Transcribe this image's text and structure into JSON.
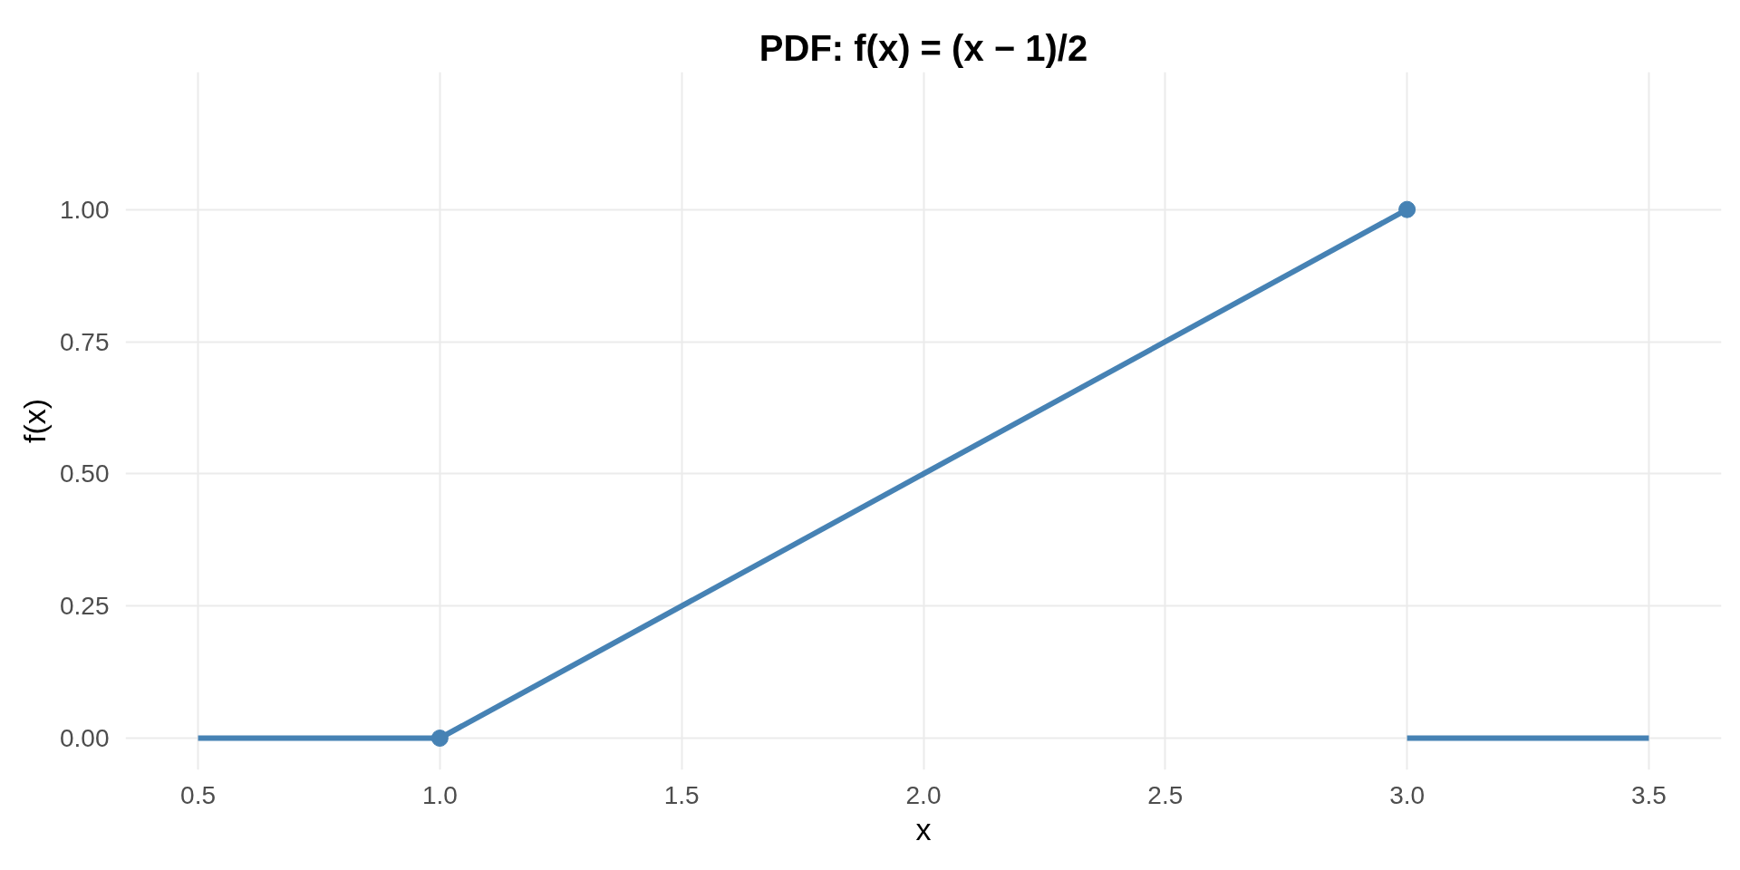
{
  "chart_data": {
    "type": "line",
    "title": "PDF: f(x) = (x − 1)/2",
    "xlabel": "x",
    "ylabel": "f(x)",
    "series": [
      {
        "color": "#4682b4",
        "x": [
          0.5,
          1
        ],
        "values": [
          0,
          0
        ]
      },
      {
        "color": "#4682b4",
        "x": [
          1,
          3
        ],
        "values": [
          0,
          1
        ],
        "marker": "circle"
      },
      {
        "color": "#4682b4",
        "x": [
          3,
          3.5
        ],
        "values": [
          0,
          0
        ]
      }
    ],
    "xlim": [
      0.35,
      3.65
    ],
    "ylim": [
      -0.06,
      1.26
    ],
    "xticks": [
      0.5,
      {
        "value": 1,
        "label": "1.0"
      },
      1.5,
      {
        "value": 2,
        "label": "2.0"
      },
      2.5,
      {
        "value": 3,
        "label": "3.0"
      },
      3.5
    ],
    "yticks": [
      {
        "value": 0,
        "label": "0.00"
      },
      0.25,
      {
        "value": 0.5,
        "label": "0.50"
      },
      0.75,
      {
        "value": 1,
        "label": "1.00"
      }
    ],
    "grid": true
  }
}
